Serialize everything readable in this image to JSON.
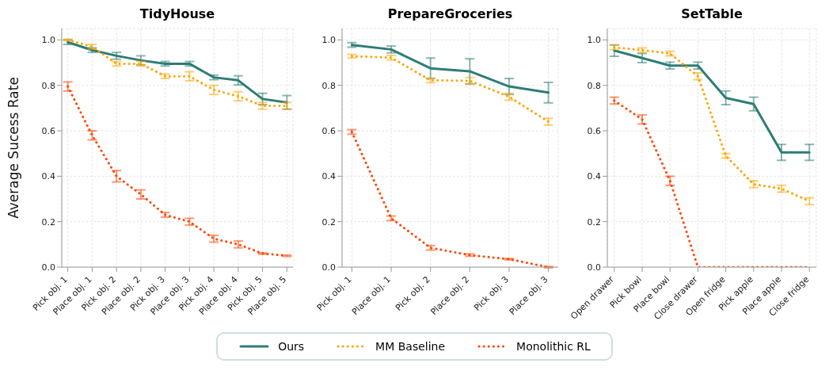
{
  "chart_data": [
    {
      "type": "line",
      "title": "TidyHouse",
      "ylabel": "Average Sucess Rate",
      "categories": [
        "Pick obj. 1",
        "Place obj. 1",
        "Pick obj. 2",
        "Place obj. 2",
        "Pick obj. 3",
        "Place obj. 3",
        "Pick obj. 4",
        "Place obj. 4",
        "Pick obj. 5",
        "Place obj. 5"
      ],
      "ylim": [
        0,
        1.05
      ],
      "yticks": [
        {
          "value": 0,
          "label": "0.0"
        },
        {
          "value": 0.2,
          "label": "0.2"
        },
        {
          "value": 0.4,
          "label": "0.4"
        },
        {
          "value": 0.6,
          "label": "0.6"
        },
        {
          "value": 0.8,
          "label": "0.8"
        },
        {
          "value": 1,
          "label": "1.0"
        }
      ],
      "grid": true,
      "marker": "none",
      "legend": "bottom",
      "series": [
        {
          "name": "Ours",
          "color": "#2e7d74",
          "line_style": "solid",
          "values": [
            0.99,
            0.955,
            0.93,
            0.91,
            0.895,
            0.895,
            0.835,
            0.822,
            0.74,
            0.725
          ],
          "errors": [
            0.01,
            0.01,
            0.015,
            0.02,
            0.01,
            0.01,
            0.01,
            0.02,
            0.025,
            0.03
          ]
        },
        {
          "name": "MM Baseline",
          "color": "#ffa500",
          "line_style": "dotted",
          "values": [
            1.0,
            0.97,
            0.895,
            0.895,
            0.84,
            0.84,
            0.78,
            0.752,
            0.71,
            0.71
          ],
          "errors": [
            0.003,
            0.01,
            0.01,
            0.01,
            0.01,
            0.02,
            0.02,
            0.02,
            0.015,
            0.015
          ]
        },
        {
          "name": "Monolithic RL",
          "color": "#ff4500",
          "line_style": "dotted",
          "values": [
            0.795,
            0.58,
            0.4,
            0.32,
            0.23,
            0.2,
            0.125,
            0.1,
            0.06,
            0.05
          ],
          "errors": [
            0.02,
            0.02,
            0.025,
            0.02,
            0.01,
            0.015,
            0.015,
            0.015,
            0.003,
            0.003
          ]
        }
      ]
    },
    {
      "type": "line",
      "title": "PrepareGroceries",
      "categories": [
        "Pick obj. 1",
        "Place obj. 1",
        "Pick obj. 2",
        "Place obj. 2",
        "Pick obj. 3",
        "Place obj. 3"
      ],
      "ylim": [
        0,
        1.05
      ],
      "yticks": [
        {
          "value": 0,
          "label": "0.0"
        },
        {
          "value": 0.2,
          "label": "0.2"
        },
        {
          "value": 0.4,
          "label": "0.4"
        },
        {
          "value": 0.6,
          "label": "0.6"
        },
        {
          "value": 0.8,
          "label": "0.8"
        },
        {
          "value": 1,
          "label": "1.0"
        }
      ],
      "grid": true,
      "marker": "none",
      "series": [
        {
          "color": "#2e7d74",
          "line_style": "solid",
          "values": [
            0.978,
            0.958,
            0.875,
            0.862,
            0.795,
            0.768
          ],
          "errors": [
            0.01,
            0.015,
            0.045,
            0.055,
            0.035,
            0.045
          ]
        },
        {
          "color": "#ffa500",
          "line_style": "dotted",
          "values": [
            0.928,
            0.922,
            0.822,
            0.82,
            0.75,
            0.64
          ],
          "errors": [
            0.008,
            0.01,
            0.01,
            0.015,
            0.015,
            0.015
          ]
        },
        {
          "color": "#ff4500",
          "line_style": "dotted",
          "values": [
            0.595,
            0.215,
            0.085,
            0.053,
            0.035,
            0.0
          ],
          "errors": [
            0.01,
            0.01,
            0.01,
            0.005,
            0.003,
            0.003
          ]
        }
      ]
    },
    {
      "type": "line",
      "title": "SetTable",
      "categories": [
        "Open drawer",
        "Pick bowl",
        "Place bowl",
        "Close drawer",
        "Open fridge",
        "Pick apple",
        "Place apple",
        "Close fridge"
      ],
      "ylim": [
        0,
        1.05
      ],
      "yticks": [
        {
          "value": 0,
          "label": "0.0"
        },
        {
          "value": 0.2,
          "label": "0.2"
        },
        {
          "value": 0.4,
          "label": "0.4"
        },
        {
          "value": 0.6,
          "label": "0.6"
        },
        {
          "value": 0.8,
          "label": "0.8"
        },
        {
          "value": 1,
          "label": "1.0"
        }
      ],
      "grid": true,
      "marker": "none",
      "series": [
        {
          "color": "#2e7d74",
          "line_style": "solid",
          "values": [
            0.953,
            0.92,
            0.887,
            0.887,
            0.745,
            0.718,
            0.505,
            0.505
          ],
          "errors": [
            0.025,
            0.02,
            0.015,
            0.015,
            0.03,
            0.03,
            0.035,
            0.035
          ]
        },
        {
          "color": "#ffa500",
          "line_style": "dotted",
          "values": [
            0.967,
            0.955,
            0.94,
            0.84,
            0.49,
            0.365,
            0.345,
            0.29
          ],
          "errors": [
            0.01,
            0.01,
            0.01,
            0.015,
            0.01,
            0.015,
            0.015,
            0.015
          ]
        },
        {
          "color": "#ff4500",
          "line_style": "dotted",
          "values": [
            0.733,
            0.65,
            0.38,
            0.0,
            0.0,
            0.0,
            0.0,
            0.0
          ],
          "errors": [
            0.015,
            0.02,
            0.02,
            null,
            null,
            null,
            null,
            null
          ]
        }
      ]
    }
  ]
}
